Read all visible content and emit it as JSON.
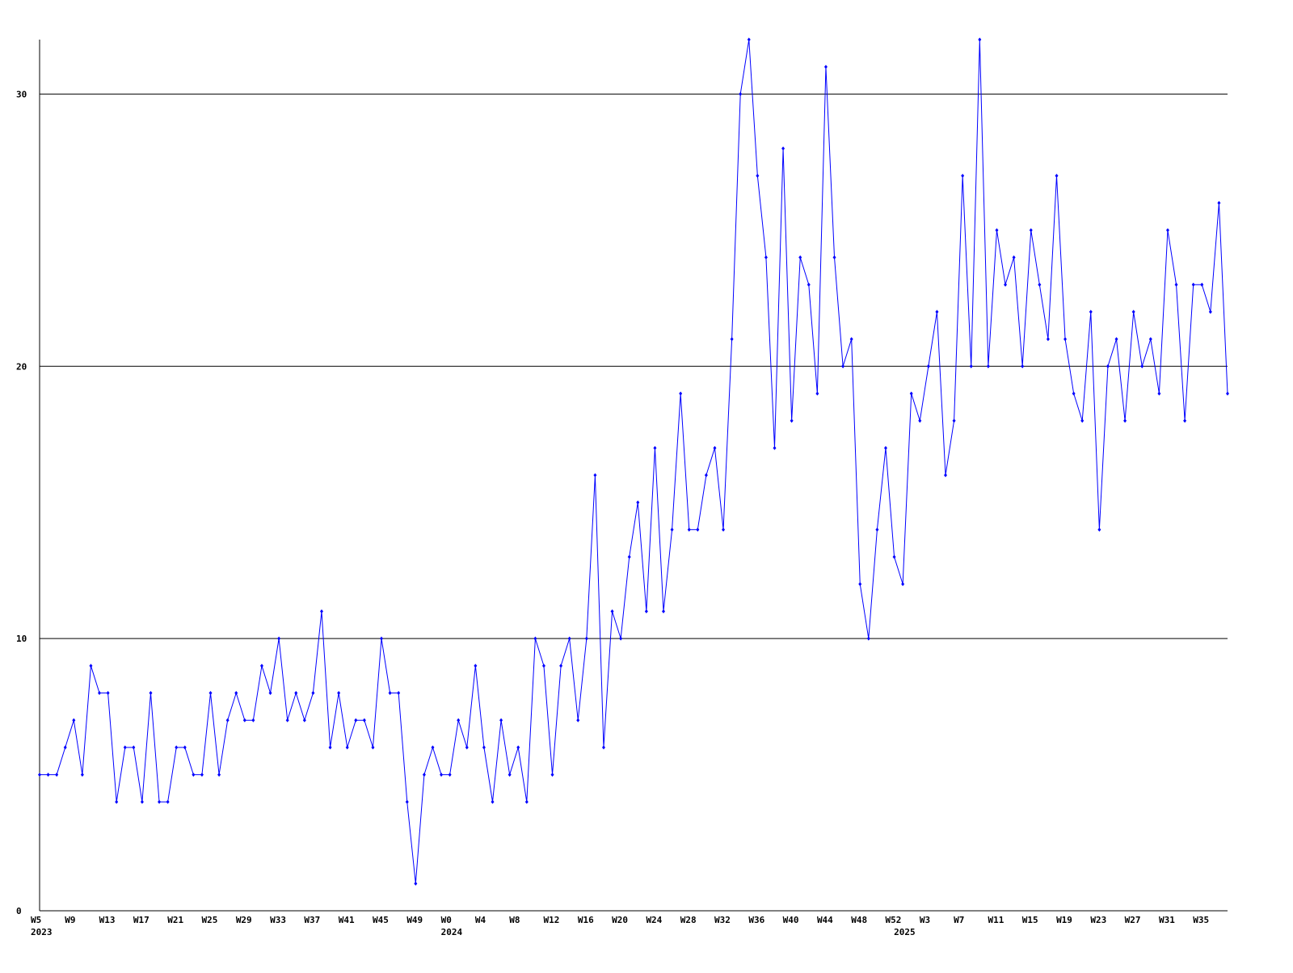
{
  "chart_data": {
    "type": "line",
    "categories": [
      "W5",
      null,
      null,
      null,
      "W9",
      null,
      null,
      null,
      "W13",
      null,
      null,
      null,
      "W17",
      null,
      null,
      null,
      "W21",
      null,
      null,
      null,
      "W25",
      null,
      null,
      null,
      "W29",
      null,
      null,
      null,
      "W33",
      null,
      null,
      null,
      "W37",
      null,
      null,
      null,
      "W41",
      null,
      null,
      null,
      "W45",
      null,
      null,
      null,
      "W49",
      null,
      null,
      null,
      "W0",
      null,
      null,
      null,
      "W4",
      null,
      null,
      null,
      "W8",
      null,
      null,
      null,
      "W12",
      null,
      null,
      null,
      "W16",
      null,
      null,
      null,
      "W20",
      null,
      null,
      null,
      "W24",
      null,
      null,
      null,
      "W28",
      null,
      null,
      null,
      "W32",
      null,
      null,
      null,
      "W36",
      null,
      null,
      null,
      "W40",
      null,
      null,
      null,
      "W44",
      null,
      null,
      null,
      "W48",
      null,
      null,
      null,
      "W52",
      null,
      null,
      null,
      "W3",
      null,
      null,
      null,
      "W7",
      null,
      null,
      null,
      "W11",
      null,
      null,
      null,
      "W15",
      null,
      null,
      null,
      "W19",
      null,
      null,
      null,
      "W23",
      null,
      null,
      null,
      "W27",
      null,
      null,
      null,
      "W31",
      null,
      null,
      null,
      "W35",
      null,
      null,
      null
    ],
    "category_years": [
      "2023",
      null,
      null,
      null,
      null,
      null,
      null,
      null,
      null,
      null,
      null,
      null,
      null,
      null,
      null,
      null,
      null,
      null,
      null,
      null,
      null,
      null,
      null,
      null,
      null,
      null,
      null,
      null,
      null,
      null,
      null,
      null,
      null,
      null,
      null,
      null,
      null,
      null,
      null,
      null,
      null,
      null,
      null,
      null,
      null,
      null,
      null,
      null,
      "2024",
      null,
      null,
      null,
      null,
      null,
      null,
      null,
      null,
      null,
      null,
      null,
      null,
      null,
      null,
      null,
      null,
      null,
      null,
      null,
      null,
      null,
      null,
      null,
      null,
      null,
      null,
      null,
      null,
      null,
      null,
      null,
      null,
      null,
      null,
      null,
      null,
      null,
      null,
      null,
      null,
      null,
      null,
      null,
      null,
      null,
      null,
      null,
      null,
      null,
      null,
      null,
      null,
      "2025",
      null,
      null,
      null,
      null,
      null,
      null,
      null,
      null,
      null,
      null,
      null,
      null,
      null,
      null,
      null,
      null,
      null,
      null,
      null,
      null,
      null,
      null,
      null,
      null,
      null,
      null,
      null,
      null,
      null,
      null,
      null,
      null,
      null,
      null,
      null,
      null,
      null,
      null
    ],
    "values": [
      5,
      5,
      5,
      6,
      7,
      5,
      9,
      8,
      8,
      4,
      6,
      6,
      4,
      8,
      4,
      4,
      6,
      6,
      5,
      5,
      8,
      5,
      7,
      8,
      7,
      7,
      9,
      8,
      10,
      7,
      8,
      7,
      8,
      11,
      6,
      8,
      6,
      7,
      7,
      6,
      10,
      8,
      8,
      4,
      1,
      5,
      6,
      5,
      5,
      7,
      6,
      9,
      6,
      4,
      7,
      5,
      6,
      4,
      10,
      9,
      5,
      9,
      10,
      7,
      10,
      16,
      6,
      11,
      10,
      13,
      15,
      11,
      17,
      11,
      14,
      19,
      14,
      14,
      16,
      17,
      14,
      21,
      30,
      32,
      27,
      24,
      17,
      28,
      18,
      24,
      23,
      19,
      31,
      24,
      20,
      21,
      12,
      10,
      14,
      17,
      13,
      12,
      19,
      18,
      20,
      22,
      16,
      18,
      27,
      20,
      32,
      20,
      25,
      23,
      24,
      20,
      25,
      23,
      21,
      27,
      21,
      19,
      18,
      22,
      14,
      20,
      21,
      18,
      22,
      20,
      21,
      19,
      25,
      23,
      18,
      23,
      23,
      22,
      26,
      19
    ],
    "color": "#0000ff",
    "ylim": [
      0,
      32
    ],
    "yticks": [
      0,
      10,
      20,
      30
    ],
    "grid": true
  }
}
